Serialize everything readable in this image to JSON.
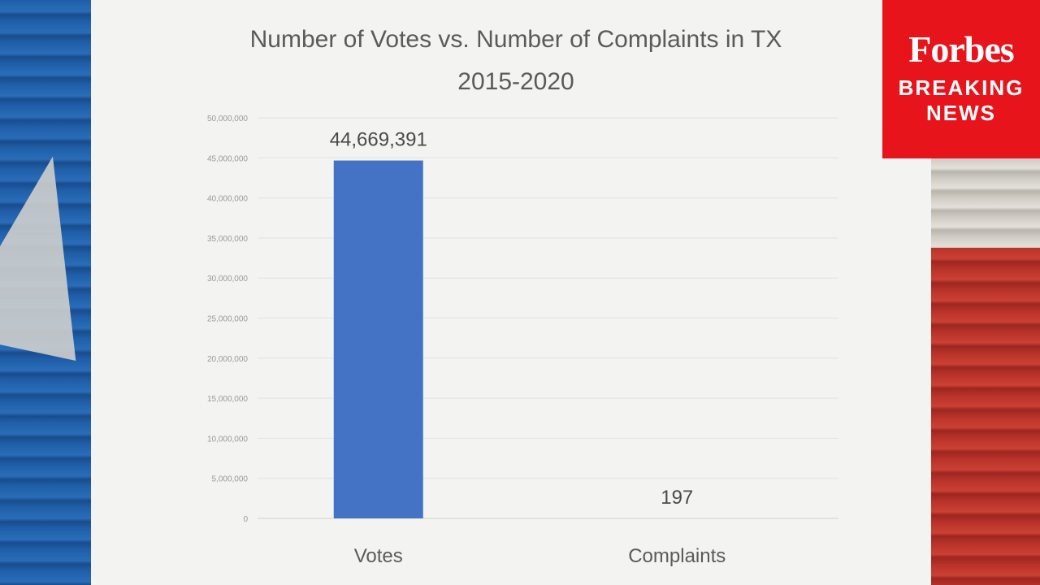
{
  "chart_data": {
    "type": "bar",
    "title": "Number of Votes vs. Number of Complaints in TX",
    "subtitle": "2015-2020",
    "categories": [
      "Votes",
      "Complaints"
    ],
    "values": [
      44669391,
      197
    ],
    "data_labels": [
      "44,669,391",
      "197"
    ],
    "xlabel": "",
    "ylabel": "",
    "ylim": [
      0,
      50000000
    ],
    "yticks": [
      0,
      5000000,
      10000000,
      15000000,
      20000000,
      25000000,
      30000000,
      35000000,
      40000000,
      45000000,
      50000000
    ],
    "ytick_labels": [
      "0",
      "5,000,000",
      "10,000,000",
      "15,000,000",
      "20,000,000",
      "25,000,000",
      "30,000,000",
      "35,000,000",
      "40,000,000",
      "45,000,000",
      "50,000,000"
    ],
    "grid": true,
    "bar_color": "#4472c4"
  },
  "badge": {
    "brand": "Forbes",
    "line1": "BREAKING",
    "line2": "NEWS",
    "color": "#e8141b"
  }
}
